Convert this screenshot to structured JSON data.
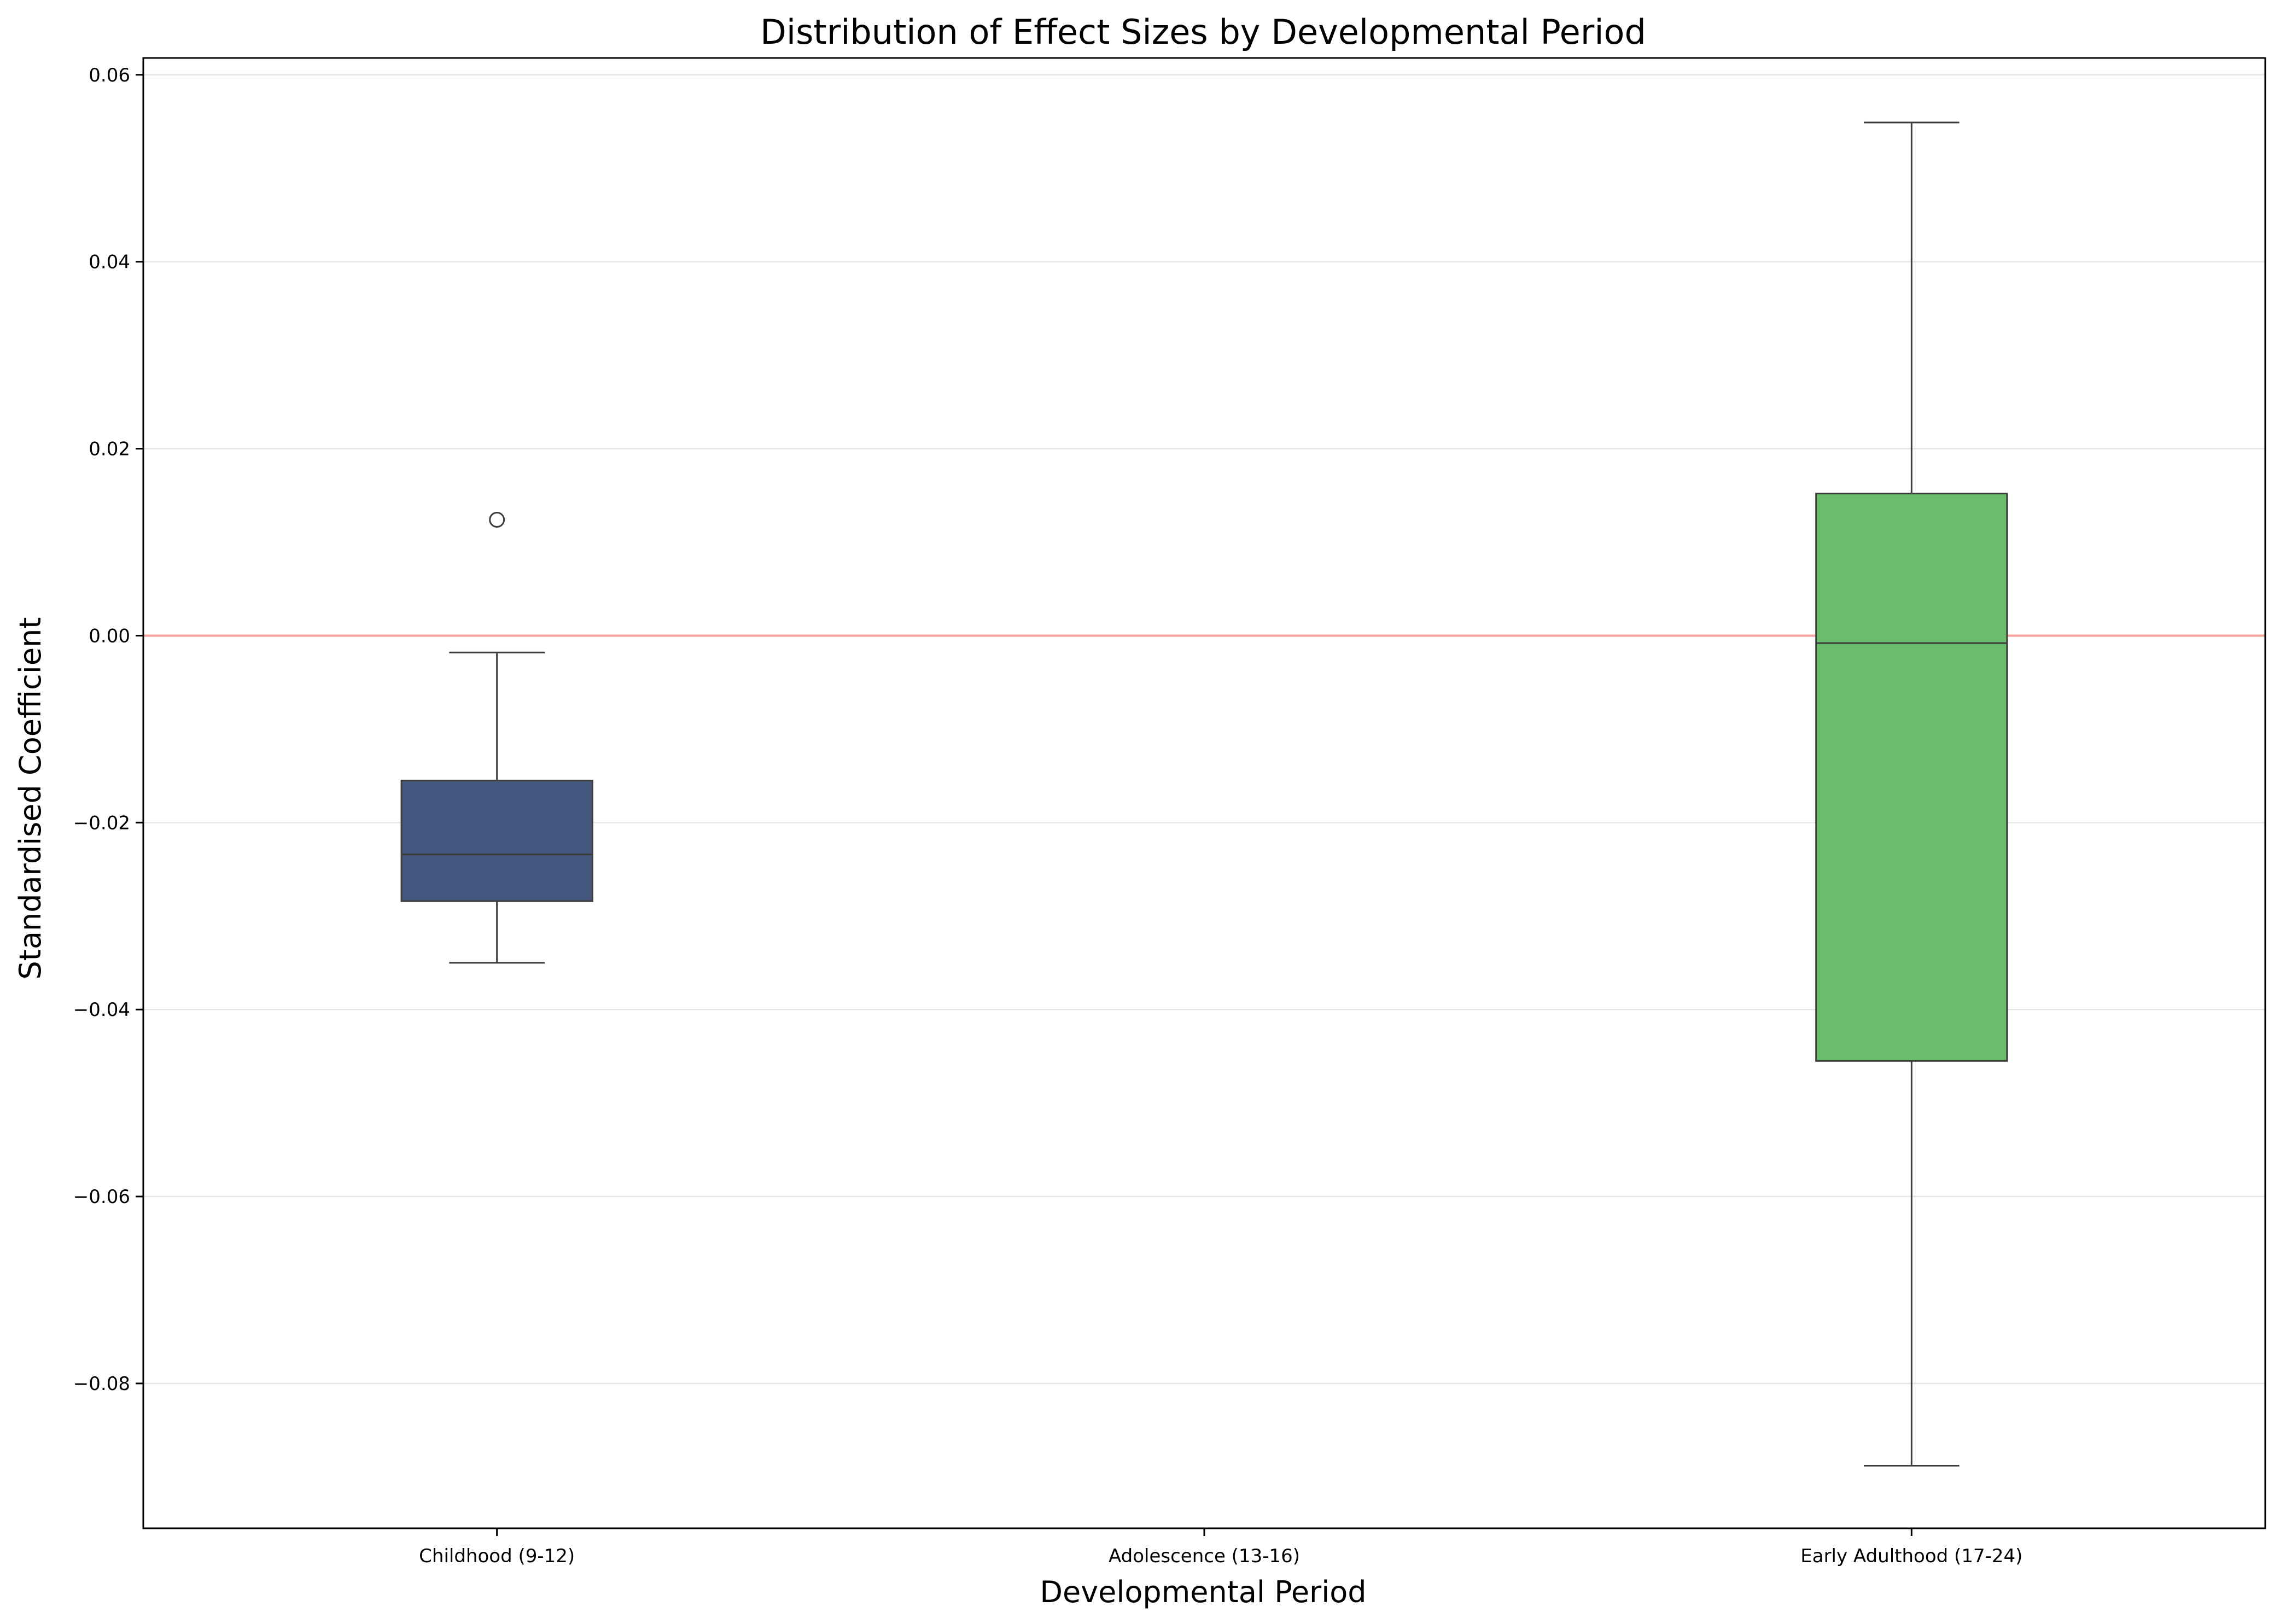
{
  "chart_data": {
    "type": "box",
    "title": "Distribution of Effect Sizes by Developmental Period",
    "xlabel": "Developmental Period",
    "ylabel": "Standardised Coefficient",
    "categories": [
      "Childhood (9-12)",
      "Adolescence (13-16)",
      "Early Adulthood (17-24)"
    ],
    "ylim": [
      -0.0955,
      0.0618
    ],
    "yticks": [
      -0.08,
      -0.06,
      -0.04,
      -0.02,
      0.0,
      0.02,
      0.04,
      0.06
    ],
    "ytick_labels": [
      "−0.08",
      "−0.06",
      "−0.04",
      "−0.02",
      "0.00",
      "0.02",
      "0.04",
      "0.06"
    ],
    "grid": true,
    "reference_line": {
      "y": 0.0,
      "color": "#f4a09b"
    },
    "boxes": [
      {
        "category": "Childhood (9-12)",
        "color": "#46577f",
        "whisker_low": -0.035,
        "q1": -0.0284,
        "median": -0.0234,
        "q3": -0.0155,
        "whisker_high": -0.0018,
        "outliers": [
          0.0124
        ]
      },
      {
        "category": "Adolescence (13-16)",
        "color": null,
        "whisker_low": null,
        "q1": null,
        "median": null,
        "q3": null,
        "whisker_high": null,
        "outliers": []
      },
      {
        "category": "Early Adulthood (17-24)",
        "color": "#6abd6b",
        "whisker_low": -0.0888,
        "q1": -0.0455,
        "median": -0.0008,
        "q3": 0.0152,
        "whisker_high": 0.0549,
        "outliers": []
      }
    ]
  }
}
